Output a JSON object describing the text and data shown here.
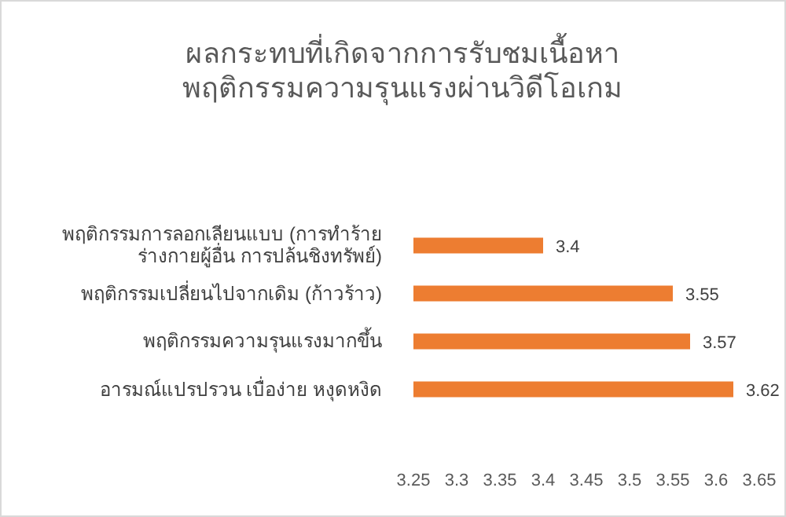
{
  "chart_data": {
    "type": "bar",
    "orientation": "horizontal",
    "title": "ผลกระทบที่เกิดจากการรับชมเนื้อหาพฤติกรรมความรุนแรงผ่านวิดีโอเกม",
    "categories": [
      "พฤติกรรมการลอกเลียนแบบ (การทำร้ายร่างกายผู้อื่น การปล้นชิงทรัพย์)",
      "พฤติกรรมเปลี่ยนไปจากเดิม (ก้าวร้าว)",
      "พฤติกรรมความรุนแรงมากขึ้น",
      "อารมณ์แปรปรวน เบื่อง่าย หงุดหงิด"
    ],
    "values": [
      3.4,
      3.55,
      3.57,
      3.62
    ],
    "color": "#ed7d31",
    "xlim": [
      3.25,
      3.65
    ],
    "xticks": [
      3.25,
      3.3,
      3.35,
      3.4,
      3.45,
      3.5,
      3.55,
      3.6,
      3.65
    ],
    "data_labels": true,
    "grid": false
  }
}
